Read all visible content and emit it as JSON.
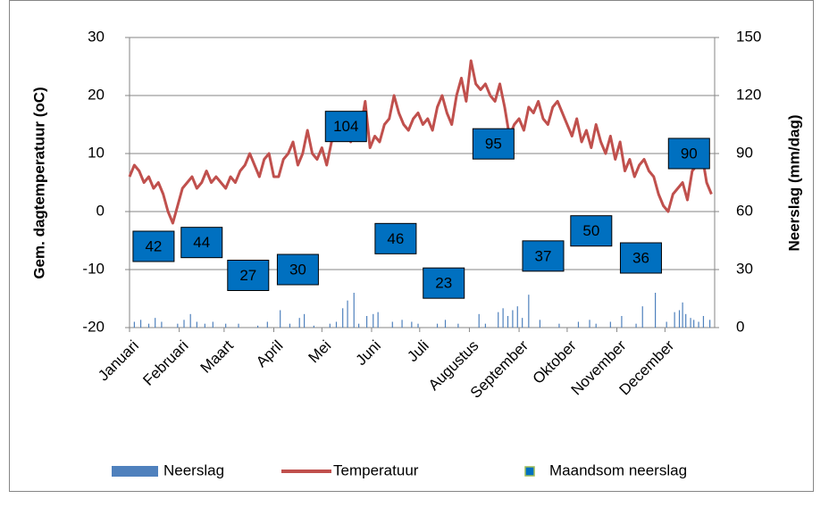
{
  "chart_data": {
    "type": "combo",
    "ylabel": "Gem. dagtemperatuur (oC)",
    "y2label": "Neerslag (mm/dag)",
    "xlim": [
      0,
      365
    ],
    "xticks": [
      {
        "value": 0,
        "label": "Januari"
      },
      {
        "value": 31,
        "label": "Februari"
      },
      {
        "value": 59,
        "label": "Maart"
      },
      {
        "value": 90,
        "label": "April"
      },
      {
        "value": 120,
        "label": "Mei"
      },
      {
        "value": 151,
        "label": "Juni"
      },
      {
        "value": 181,
        "label": "Juli"
      },
      {
        "value": 212,
        "label": "Augustus"
      },
      {
        "value": 243,
        "label": "September"
      },
      {
        "value": 273,
        "label": "Oktober"
      },
      {
        "value": 304,
        "label": "November"
      },
      {
        "value": 334,
        "label": "December"
      }
    ],
    "ylim": [
      -20,
      30
    ],
    "yticks": [
      -20,
      -10,
      0,
      10,
      20,
      30
    ],
    "y2lim": [
      0,
      150
    ],
    "y2ticks": [
      0,
      30,
      60,
      90,
      120,
      150
    ],
    "grid": true,
    "legend": "bottom",
    "series": [
      {
        "name": "Neerslag",
        "type": "bar",
        "axis": "y2",
        "color": "#4f81bd",
        "x": [
          3,
          7,
          12,
          16,
          20,
          30,
          34,
          38,
          42,
          47,
          52,
          60,
          68,
          80,
          86,
          94,
          100,
          106,
          109,
          115,
          125,
          129,
          133,
          136,
          140,
          143,
          148,
          152,
          155,
          164,
          170,
          176,
          180,
          192,
          197,
          205,
          218,
          222,
          230,
          233,
          236,
          239,
          242,
          245,
          249,
          256,
          268,
          280,
          287,
          291,
          300,
          307,
          316,
          320,
          328,
          335,
          340,
          343,
          345,
          347,
          350,
          352,
          355,
          358,
          362
        ],
        "values": [
          3,
          4,
          2,
          5,
          3,
          2,
          4,
          7,
          3,
          2,
          3,
          2,
          2,
          1,
          3,
          9,
          2,
          5,
          7,
          1,
          2,
          3,
          10,
          14,
          18,
          2,
          6,
          7,
          8,
          3,
          4,
          3,
          2,
          2,
          4,
          2,
          7,
          2,
          8,
          10,
          6,
          9,
          11,
          5,
          17,
          4,
          2,
          3,
          4,
          2,
          3,
          6,
          2,
          11,
          18,
          3,
          8,
          9,
          13,
          7,
          5,
          4,
          3,
          6,
          4
        ]
      },
      {
        "name": "Temperatuur",
        "type": "line",
        "color": "#c0504d",
        "x": [
          0,
          3,
          6,
          9,
          12,
          15,
          18,
          21,
          24,
          27,
          30,
          33,
          36,
          39,
          42,
          45,
          48,
          51,
          54,
          57,
          60,
          63,
          66,
          69,
          72,
          75,
          78,
          81,
          84,
          87,
          90,
          93,
          96,
          99,
          102,
          105,
          108,
          111,
          114,
          117,
          120,
          123,
          126,
          129,
          132,
          135,
          138,
          141,
          144,
          147,
          150,
          153,
          156,
          159,
          162,
          165,
          168,
          171,
          174,
          177,
          180,
          183,
          186,
          189,
          192,
          195,
          198,
          201,
          204,
          207,
          210,
          213,
          216,
          219,
          222,
          225,
          228,
          231,
          234,
          237,
          240,
          243,
          246,
          249,
          252,
          255,
          258,
          261,
          264,
          267,
          270,
          273,
          276,
          279,
          282,
          285,
          288,
          291,
          294,
          297,
          300,
          303,
          306,
          309,
          312,
          315,
          318,
          321,
          324,
          327,
          330,
          333,
          336,
          339,
          342,
          345,
          348,
          351,
          354,
          357,
          360,
          363
        ],
        "values": [
          6,
          8,
          7,
          5,
          6,
          4,
          5,
          3,
          0,
          -2,
          1,
          4,
          5,
          6,
          4,
          5,
          7,
          5,
          6,
          5,
          4,
          6,
          5,
          7,
          8,
          10,
          8,
          6,
          9,
          10,
          6,
          6,
          9,
          10,
          12,
          8,
          10,
          14,
          10,
          9,
          11,
          8,
          12,
          14,
          13,
          15,
          12,
          16,
          14,
          19,
          11,
          13,
          12,
          15,
          16,
          20,
          17,
          15,
          14,
          16,
          17,
          15,
          16,
          14,
          18,
          20,
          17,
          15,
          20,
          23,
          19,
          26,
          22,
          21,
          22,
          20,
          19,
          22,
          18,
          13,
          15,
          16,
          14,
          18,
          17,
          19,
          16,
          15,
          18,
          19,
          17,
          15,
          13,
          16,
          12,
          14,
          11,
          15,
          12,
          10,
          13,
          9,
          12,
          7,
          9,
          6,
          8,
          9,
          7,
          6,
          3,
          1,
          0,
          3,
          4,
          5,
          2,
          7,
          8,
          10,
          5,
          3
        ]
      },
      {
        "name": "Maandsom neerslag",
        "type": "label-box",
        "axis": "y2",
        "color": "#0070c0",
        "x": [
          15,
          45,
          74,
          105,
          135,
          166,
          196,
          227,
          258,
          288,
          319,
          349
        ],
        "values": [
          42,
          44,
          27,
          30,
          104,
          46,
          23,
          95,
          37,
          50,
          36,
          90
        ]
      }
    ]
  }
}
